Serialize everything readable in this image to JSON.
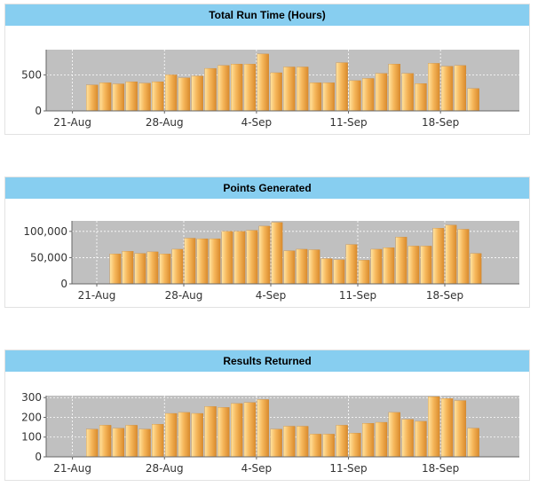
{
  "chart_data": [
    {
      "type": "bar",
      "title": "Total Run Time (Hours)",
      "xlabel": "",
      "ylabel": "",
      "ylim": [
        0,
        850
      ],
      "yticks": [
        0,
        500
      ],
      "ytick_labels": [
        "0",
        "500"
      ],
      "xlim": [
        "2023-08-19",
        "2023-09-24"
      ],
      "xticks": [
        "2023-08-21",
        "2023-08-28",
        "2023-09-04",
        "2023-09-11",
        "2023-09-18"
      ],
      "xtick_labels": [
        "21-Aug",
        "28-Aug",
        "4-Sep",
        "11-Sep",
        "18-Sep"
      ],
      "grid": true,
      "x": [
        "2023-08-22",
        "2023-08-23",
        "2023-08-24",
        "2023-08-25",
        "2023-08-26",
        "2023-08-27",
        "2023-08-28",
        "2023-08-29",
        "2023-08-30",
        "2023-08-31",
        "2023-09-01",
        "2023-09-02",
        "2023-09-03",
        "2023-09-04",
        "2023-09-05",
        "2023-09-06",
        "2023-09-07",
        "2023-09-08",
        "2023-09-09",
        "2023-09-10",
        "2023-09-11",
        "2023-09-12",
        "2023-09-13",
        "2023-09-14",
        "2023-09-15",
        "2023-09-16",
        "2023-09-17",
        "2023-09-18",
        "2023-09-19",
        "2023-09-20",
        "2023-09-21",
        "2023-09-22",
        "2023-09-23"
      ],
      "values": [
        360,
        390,
        375,
        405,
        385,
        405,
        500,
        460,
        485,
        590,
        630,
        650,
        650,
        790,
        530,
        610,
        610,
        390,
        390,
        670,
        420,
        450,
        520,
        650,
        520,
        380,
        660,
        620,
        630,
        310,
        0,
        0,
        0
      ]
    },
    {
      "type": "bar",
      "title": "Points Generated",
      "xlabel": "",
      "ylabel": "",
      "ylim": [
        0,
        120000
      ],
      "yticks": [
        0,
        50000,
        100000
      ],
      "ytick_labels": [
        "0",
        "50,000",
        "100,000"
      ],
      "xlim": [
        "2023-08-19",
        "2023-09-24"
      ],
      "xticks": [
        "2023-08-21",
        "2023-08-28",
        "2023-09-04",
        "2023-09-11",
        "2023-09-18"
      ],
      "xtick_labels": [
        "21-Aug",
        "28-Aug",
        "4-Sep",
        "11-Sep",
        "18-Sep"
      ],
      "grid": true,
      "x": [
        "2023-08-22",
        "2023-08-23",
        "2023-08-24",
        "2023-08-25",
        "2023-08-26",
        "2023-08-27",
        "2023-08-28",
        "2023-08-29",
        "2023-08-30",
        "2023-08-31",
        "2023-09-01",
        "2023-09-02",
        "2023-09-03",
        "2023-09-04",
        "2023-09-05",
        "2023-09-06",
        "2023-09-07",
        "2023-09-08",
        "2023-09-09",
        "2023-09-10",
        "2023-09-11",
        "2023-09-12",
        "2023-09-13",
        "2023-09-14",
        "2023-09-15",
        "2023-09-16",
        "2023-09-17",
        "2023-09-18",
        "2023-09-19",
        "2023-09-20",
        "2023-09-21",
        "2023-09-22",
        "2023-09-23"
      ],
      "values": [
        57000,
        62000,
        58000,
        61000,
        57000,
        66000,
        87000,
        86000,
        86000,
        100000,
        100000,
        102000,
        110000,
        117000,
        63000,
        66000,
        65000,
        48000,
        46000,
        75000,
        45000,
        66000,
        69000,
        89000,
        72000,
        72000,
        106000,
        112000,
        104000,
        58000,
        0,
        0,
        0
      ]
    },
    {
      "type": "bar",
      "title": "Results Returned",
      "xlabel": "",
      "ylabel": "",
      "ylim": [
        0,
        310
      ],
      "yticks": [
        0,
        100,
        200,
        300
      ],
      "ytick_labels": [
        "0",
        "100",
        "200",
        "300"
      ],
      "xlim": [
        "2023-08-19",
        "2023-09-24"
      ],
      "xticks": [
        "2023-08-21",
        "2023-08-28",
        "2023-09-04",
        "2023-09-11",
        "2023-09-18"
      ],
      "xtick_labels": [
        "21-Aug",
        "28-Aug",
        "4-Sep",
        "11-Sep",
        "18-Sep"
      ],
      "grid": true,
      "x": [
        "2023-08-22",
        "2023-08-23",
        "2023-08-24",
        "2023-08-25",
        "2023-08-26",
        "2023-08-27",
        "2023-08-28",
        "2023-08-29",
        "2023-08-30",
        "2023-08-31",
        "2023-09-01",
        "2023-09-02",
        "2023-09-03",
        "2023-09-04",
        "2023-09-05",
        "2023-09-06",
        "2023-09-07",
        "2023-09-08",
        "2023-09-09",
        "2023-09-10",
        "2023-09-11",
        "2023-09-12",
        "2023-09-13",
        "2023-09-14",
        "2023-09-15",
        "2023-09-16",
        "2023-09-17",
        "2023-09-18",
        "2023-09-19",
        "2023-09-20",
        "2023-09-21",
        "2023-09-22",
        "2023-09-23"
      ],
      "values": [
        140,
        160,
        145,
        160,
        140,
        165,
        220,
        225,
        220,
        255,
        250,
        270,
        275,
        290,
        140,
        155,
        155,
        115,
        115,
        160,
        120,
        170,
        175,
        225,
        190,
        180,
        305,
        295,
        285,
        145,
        0,
        0,
        0
      ]
    }
  ],
  "colors": {
    "header_bg": "#87cef0",
    "plot_bg": "#c0c0c0",
    "bar_light": "#ffe3a0",
    "bar_mid": "#f6b75b",
    "bar_dark": "#d98a2c",
    "grid": "#ffffff"
  }
}
